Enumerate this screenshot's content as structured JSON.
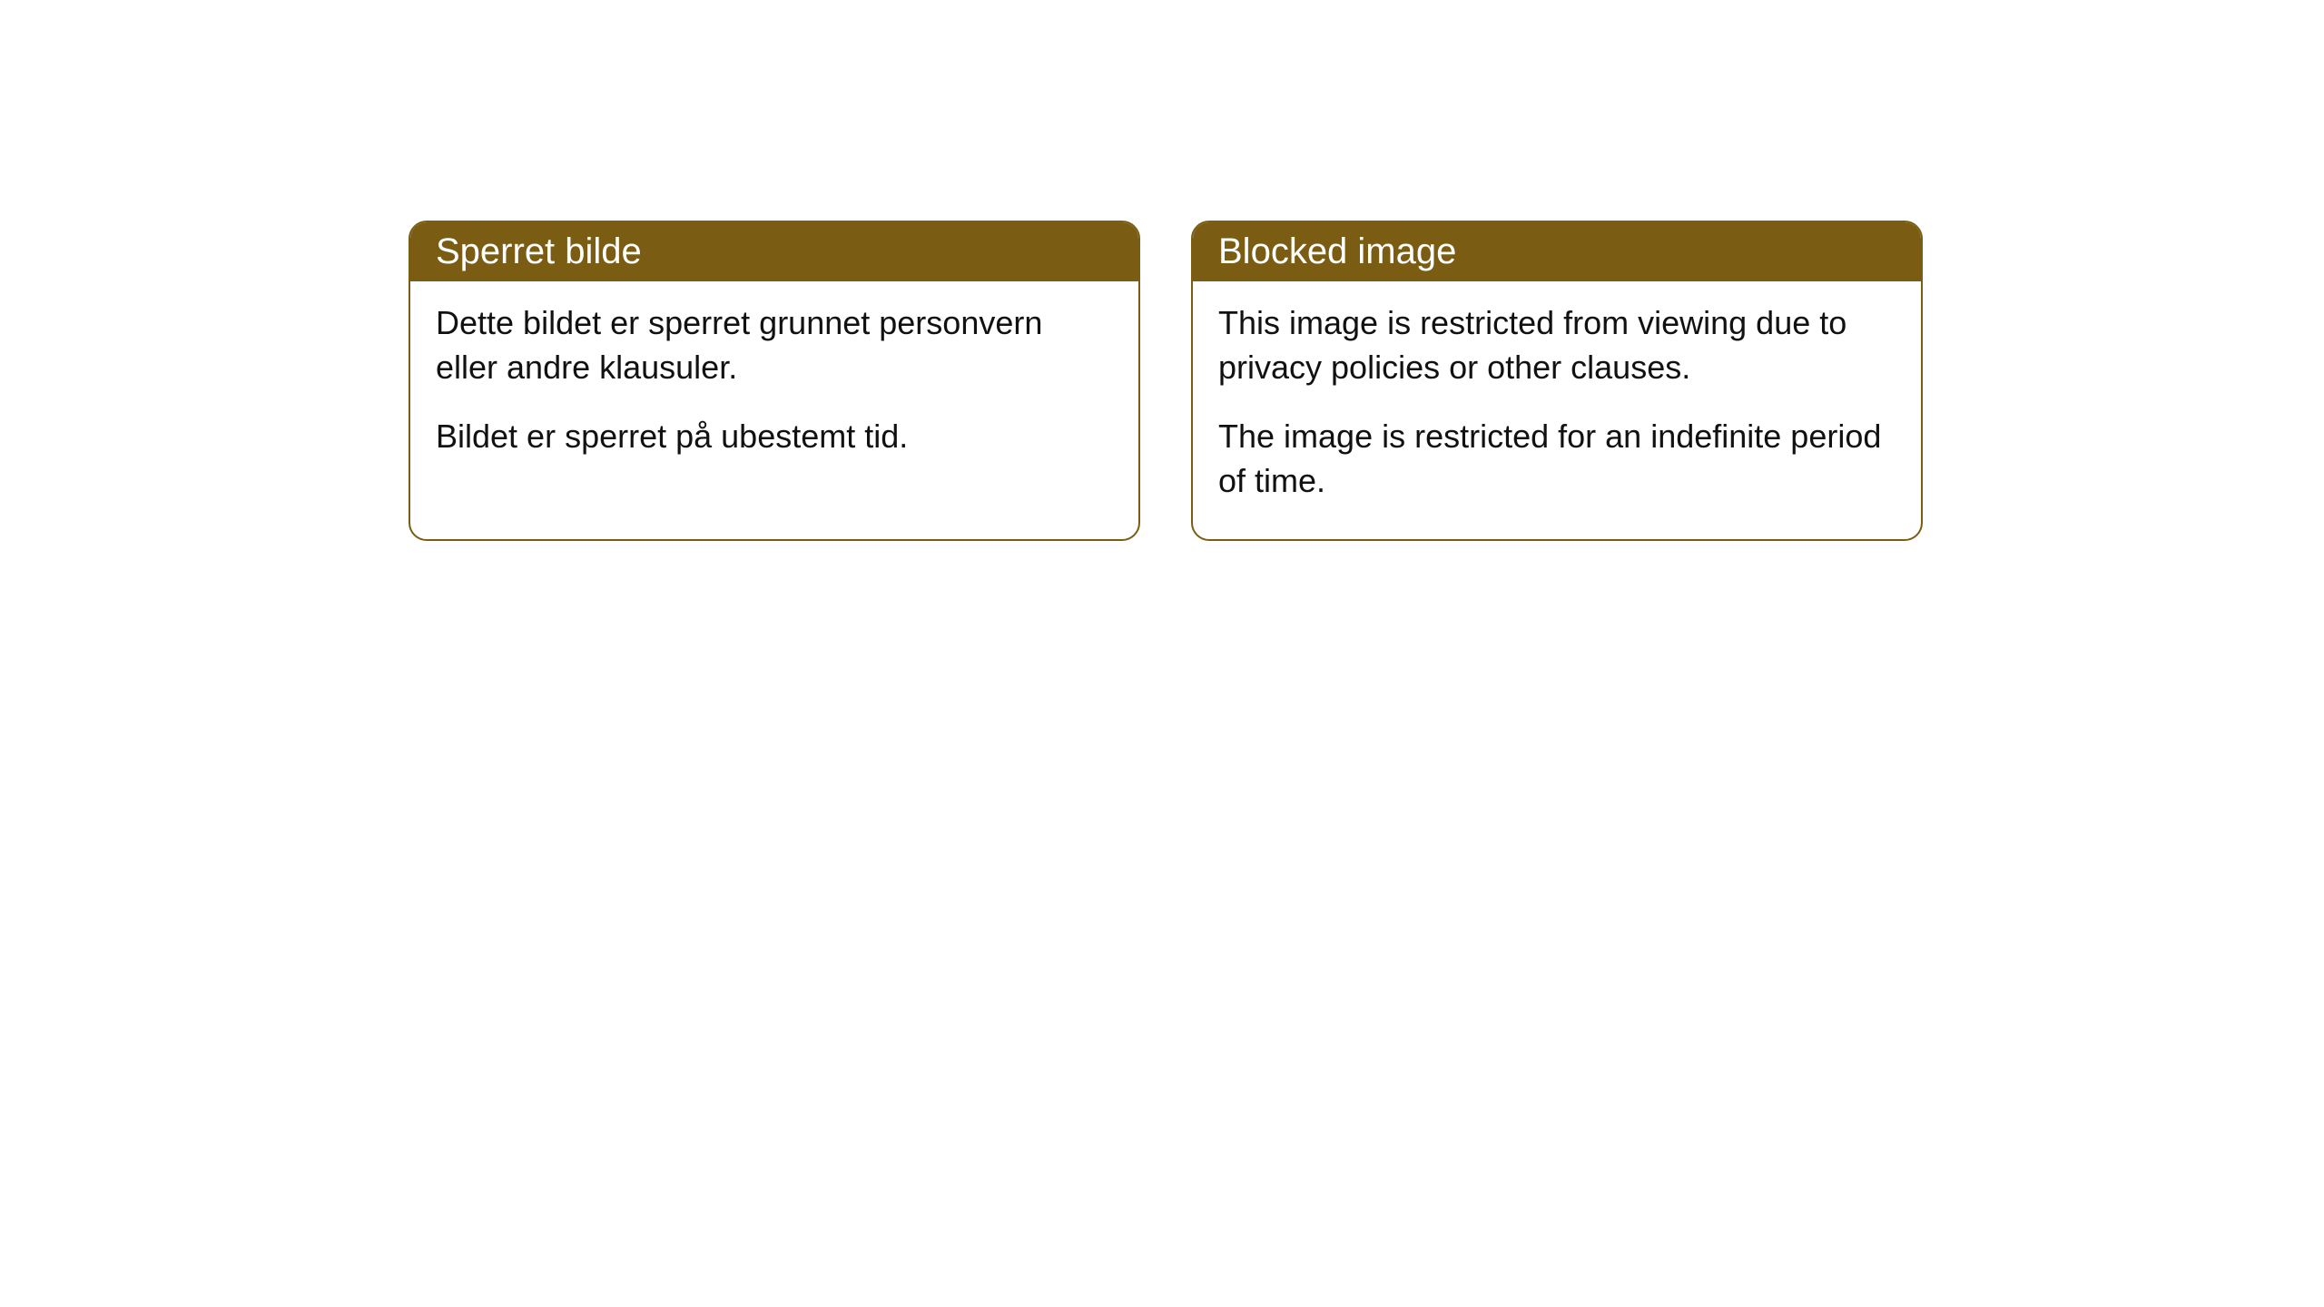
{
  "cards": [
    {
      "title": "Sperret bilde",
      "paragraph1": "Dette bildet er sperret grunnet personvern eller andre klausuler.",
      "paragraph2": "Bildet er sperret på ubestemt tid."
    },
    {
      "title": "Blocked image",
      "paragraph1": "This image is restricted from viewing due to privacy policies or other clauses.",
      "paragraph2": "The image is restricted for an indefinite period of time."
    }
  ],
  "styles": {
    "header_background": "#7a5c13",
    "header_text_color": "#ffffff",
    "border_color": "#7a5c13",
    "body_background": "#ffffff",
    "body_text_color": "#111111",
    "border_radius": 20,
    "header_fontsize": 40,
    "body_fontsize": 36
  }
}
